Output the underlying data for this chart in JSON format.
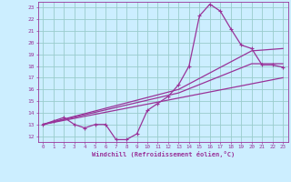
{
  "background_color": "#cceeff",
  "grid_color": "#99cccc",
  "line_color": "#993399",
  "x_label": "Windchill (Refroidissement éolien,°C)",
  "x_ticks": [
    0,
    1,
    2,
    3,
    4,
    5,
    6,
    7,
    8,
    9,
    10,
    11,
    12,
    13,
    14,
    15,
    16,
    17,
    18,
    19,
    20,
    21,
    22,
    23
  ],
  "y_ticks": [
    12,
    13,
    14,
    15,
    16,
    17,
    18,
    19,
    20,
    21,
    22,
    23
  ],
  "ylim": [
    11.5,
    23.5
  ],
  "xlim": [
    -0.5,
    23.5
  ],
  "line1_x": [
    0,
    1,
    2,
    3,
    4,
    5,
    6,
    7,
    8,
    9,
    10,
    11,
    12,
    13,
    14,
    15,
    16,
    17,
    18,
    19,
    20,
    21,
    22,
    23
  ],
  "line1_y": [
    13.0,
    13.3,
    13.6,
    13.0,
    12.7,
    13.0,
    13.0,
    11.7,
    11.7,
    12.2,
    14.2,
    14.8,
    15.4,
    16.4,
    18.0,
    22.3,
    23.3,
    22.7,
    21.2,
    19.8,
    19.5,
    18.1,
    18.1,
    17.9
  ],
  "line2_x": [
    0,
    23
  ],
  "line2_y": [
    13.0,
    17.0
  ],
  "line3_x": [
    0,
    13,
    20,
    23
  ],
  "line3_y": [
    13.0,
    16.0,
    19.3,
    19.5
  ],
  "line4_x": [
    0,
    13,
    20,
    23
  ],
  "line4_y": [
    13.0,
    15.7,
    18.2,
    18.2
  ]
}
